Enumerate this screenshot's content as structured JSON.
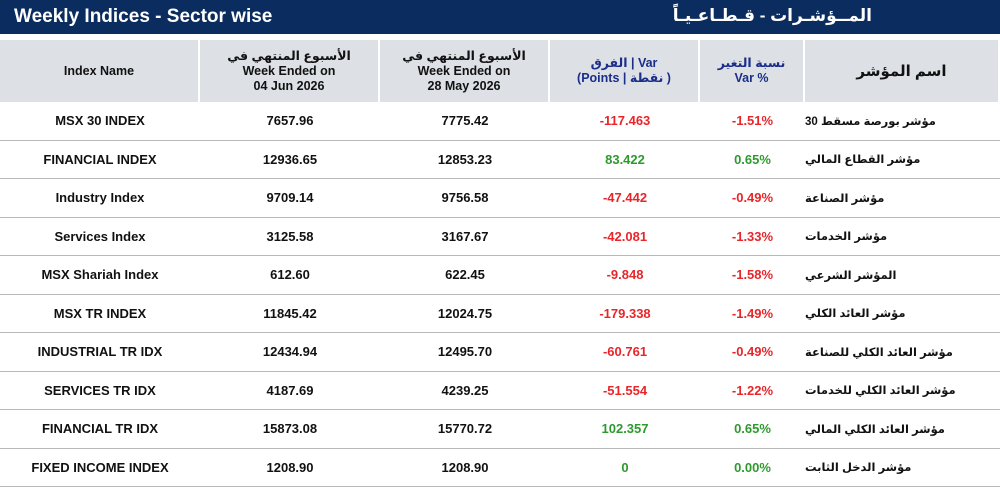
{
  "header": {
    "title": "Weekly Indices - Sector wise",
    "title_ar": "المــؤشـرات - قـطـاعـيـاً"
  },
  "table": {
    "columns": [
      [
        "Index Name"
      ],
      [
        "الأسبوع المنتهي في",
        "Week Ended on",
        "04 Jun 2026"
      ],
      [
        "الأسبوع المنتهي في",
        "Week Ended on",
        "28 May 2026"
      ],
      [
        "الفرق | Var",
        "(Points | نقطة )"
      ],
      [
        "نسبة التغير",
        "Var %"
      ],
      [
        "اسم المؤشر"
      ]
    ],
    "rows": [
      [
        "MSX 30 INDEX",
        "7657.96",
        "7775.42",
        "-117.463",
        "-1.51%",
        "مؤشر بورصة مسقط 30"
      ],
      [
        "FINANCIAL INDEX",
        "12936.65",
        "12853.23",
        "83.422",
        "0.65%",
        "مؤشر القطاع المالي"
      ],
      [
        "Industry Index",
        "9709.14",
        "9756.58",
        "-47.442",
        "-0.49%",
        "مؤشر الصناعة"
      ],
      [
        "Services Index",
        "3125.58",
        "3167.67",
        "-42.081",
        "-1.33%",
        "مؤشر الخدمات"
      ],
      [
        "MSX Shariah Index",
        "612.60",
        "622.45",
        "-9.848",
        "-1.58%",
        "المؤشر الشرعي"
      ],
      [
        "MSX TR INDEX",
        "11845.42",
        "12024.75",
        "-179.338",
        "-1.49%",
        "مؤشر العائد الكلي"
      ],
      [
        "INDUSTRIAL TR IDX",
        "12434.94",
        "12495.70",
        "-60.761",
        "-0.49%",
        "مؤشر العائد الكلي للصناعة"
      ],
      [
        "SERVICES TR IDX",
        "4187.69",
        "4239.25",
        "-51.554",
        "-1.22%",
        "مؤشر العائد الكلي للخدمات"
      ],
      [
        "FINANCIAL TR IDX",
        "15873.08",
        "15770.72",
        "102.357",
        "0.65%",
        "مؤشر العائد الكلي المالي"
      ],
      [
        "FIXED INCOME INDEX",
        "1208.90",
        "1208.90",
        "0",
        "0.00%",
        "مؤشر الدخل الثابت"
      ]
    ]
  }
}
